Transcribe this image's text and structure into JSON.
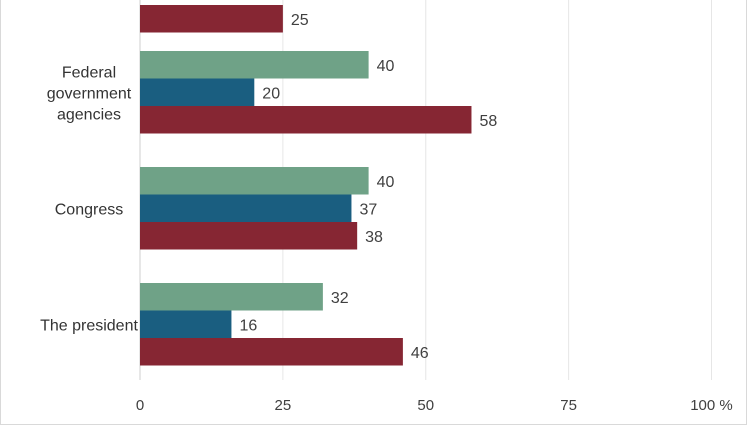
{
  "chart_data": {
    "type": "bar",
    "orientation": "horizontal",
    "categories": [
      {
        "lines": []
      },
      {
        "lines": [
          "Federal",
          "government",
          "agencies"
        ]
      },
      {
        "lines": [
          "Congress"
        ]
      },
      {
        "lines": [
          "The president"
        ]
      }
    ],
    "series": [
      {
        "color": "#6fa287",
        "values": [
          null,
          40,
          40,
          32
        ]
      },
      {
        "color": "#1a5e80",
        "values": [
          null,
          20,
          37,
          16
        ]
      },
      {
        "color": "#862633",
        "values": [
          25,
          58,
          38,
          46
        ]
      }
    ],
    "xlim": [
      0,
      100
    ],
    "xticks": [
      {
        "value": 0,
        "label": "0"
      },
      {
        "value": 25,
        "label": "25"
      },
      {
        "value": 50,
        "label": "50"
      },
      {
        "value": 75,
        "label": "75"
      },
      {
        "value": 100,
        "label": "100 %"
      }
    ],
    "grid": true,
    "title": "",
    "xlabel": "",
    "ylabel": ""
  }
}
